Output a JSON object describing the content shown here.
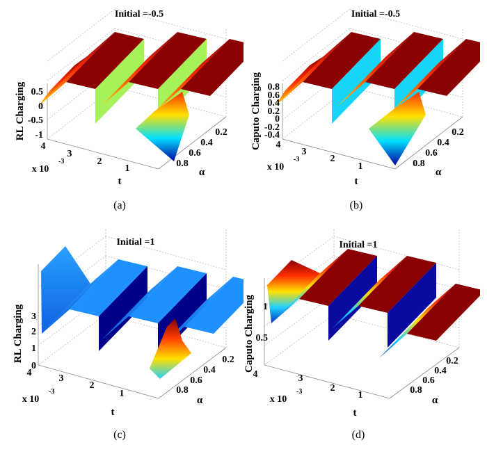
{
  "chart_data": [
    {
      "type": "surface",
      "panel": "a",
      "title": "Initial =-0.5",
      "zlabel": "RL Charging",
      "xlabel": "t",
      "ylabel": "α",
      "xticks": [
        "4",
        "3",
        "2",
        "1"
      ],
      "x_multiplier": "x 10",
      "x_exponent": "-3",
      "yticks": [
        "0.2",
        "0.4",
        "0.6",
        "0.8"
      ],
      "zticks": [
        "0.5",
        "0",
        "-0.5",
        "-1"
      ],
      "zlim": [
        -1,
        0.8
      ],
      "colormap": "jet",
      "caption": "(a)"
    },
    {
      "type": "surface",
      "panel": "b",
      "title": "Initial =-0.5",
      "zlabel": "Caputo Charging",
      "xlabel": "t",
      "ylabel": "α",
      "xticks": [
        "4",
        "3",
        "2",
        "1"
      ],
      "x_multiplier": "x 10",
      "x_exponent": "-3",
      "yticks": [
        "0.2",
        "0.4",
        "0.6",
        "0.8"
      ],
      "zticks": [
        "0.8",
        "0.6",
        "0.4",
        "0.2",
        "0",
        "-0.2",
        "-0.4"
      ],
      "zlim": [
        -0.4,
        0.9
      ],
      "colormap": "jet",
      "caption": "(b)"
    },
    {
      "type": "surface",
      "panel": "c",
      "title": "Initial =1",
      "zlabel": "RL Charging",
      "xlabel": "t",
      "ylabel": "α",
      "xticks": [
        "4",
        "3",
        "2",
        "1"
      ],
      "x_multiplier": "x 10",
      "x_exponent": "-3",
      "yticks": [
        "0.2",
        "0.4",
        "0.6",
        "0.8"
      ],
      "zticks": [
        "3",
        "2",
        "1",
        "0"
      ],
      "zlim": [
        0,
        3.5
      ],
      "colormap": "jet",
      "caption": "(c)"
    },
    {
      "type": "surface",
      "panel": "d",
      "title": "Initial =1",
      "zlabel": "Caputo Charging",
      "xlabel": "t",
      "ylabel": "α",
      "xticks": [
        "4",
        "3",
        "2",
        "1"
      ],
      "x_multiplier": "x 10",
      "x_exponent": "-3",
      "yticks": [
        "0.2",
        "0.4",
        "0.6",
        "0.8"
      ],
      "zticks": [
        "1",
        "0.5"
      ],
      "zlim": [
        0.3,
        1.1
      ],
      "colormap": "jet",
      "caption": "(d)"
    }
  ]
}
